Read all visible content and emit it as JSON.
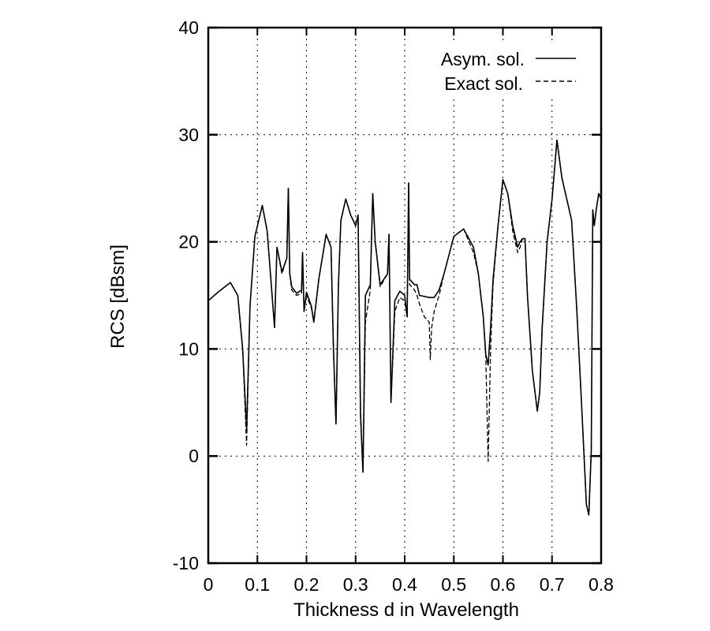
{
  "chart_data": {
    "type": "line",
    "title": "",
    "xlabel": "Thickness d in Wavelength",
    "ylabel": "RCS [dBsm]",
    "xlim": [
      0,
      0.8
    ],
    "ylim": [
      -10,
      40
    ],
    "x_ticks": [
      "0",
      "0.1",
      "0.2",
      "0.3",
      "0.4",
      "0.5",
      "0.6",
      "0.7",
      "0.8"
    ],
    "y_ticks": [
      "-10",
      "0",
      "10",
      "20",
      "30",
      "40"
    ],
    "grid": true,
    "legend_position": "upper right",
    "series": [
      {
        "name": "Asym. sol.",
        "style": "solid",
        "x": [
          0.0,
          0.02,
          0.045,
          0.06,
          0.07,
          0.078,
          0.085,
          0.095,
          0.11,
          0.12,
          0.13,
          0.135,
          0.14,
          0.15,
          0.16,
          0.163,
          0.166,
          0.17,
          0.18,
          0.19,
          0.192,
          0.195,
          0.2,
          0.21,
          0.215,
          0.225,
          0.24,
          0.25,
          0.255,
          0.26,
          0.265,
          0.27,
          0.28,
          0.29,
          0.3,
          0.305,
          0.31,
          0.315,
          0.32,
          0.33,
          0.335,
          0.34,
          0.35,
          0.365,
          0.368,
          0.372,
          0.38,
          0.39,
          0.4,
          0.405,
          0.408,
          0.41,
          0.42,
          0.425,
          0.43,
          0.45,
          0.46,
          0.47,
          0.48,
          0.5,
          0.52,
          0.54,
          0.55,
          0.56,
          0.565,
          0.57,
          0.575,
          0.58,
          0.59,
          0.6,
          0.61,
          0.62,
          0.63,
          0.635,
          0.64,
          0.645,
          0.65,
          0.66,
          0.67,
          0.675,
          0.68,
          0.69,
          0.7,
          0.71,
          0.72,
          0.73,
          0.74,
          0.75,
          0.76,
          0.77,
          0.775,
          0.78,
          0.783,
          0.786,
          0.79,
          0.795,
          0.8
        ],
        "y": [
          14.5,
          15.3,
          16.2,
          15.0,
          10.0,
          2.5,
          14.0,
          20.5,
          23.4,
          21.0,
          15.0,
          12.0,
          19.5,
          17.2,
          18.5,
          25.0,
          17.0,
          15.8,
          15.2,
          15.5,
          19.0,
          13.5,
          15.3,
          14.0,
          12.5,
          16.5,
          20.7,
          19.5,
          10.0,
          3.0,
          16.0,
          22.0,
          24.0,
          22.5,
          21.5,
          22.5,
          4.0,
          -1.5,
          15.0,
          16.0,
          24.5,
          20.0,
          16.0,
          17.0,
          20.7,
          5.0,
          14.5,
          15.4,
          15.0,
          13.0,
          25.5,
          16.5,
          16.0,
          16.0,
          15.0,
          14.8,
          14.8,
          15.5,
          17.0,
          20.5,
          21.2,
          19.5,
          17.0,
          13.0,
          9.5,
          8.5,
          12.0,
          16.5,
          21.5,
          25.8,
          24.5,
          21.5,
          19.5,
          20.0,
          20.3,
          20.3,
          15.0,
          8.0,
          4.2,
          6.0,
          12.0,
          20.0,
          24.0,
          29.5,
          26.0,
          24.0,
          22.0,
          14.0,
          5.0,
          -4.5,
          -5.5,
          0.5,
          23.0,
          21.5,
          23.0,
          24.5,
          24.0
        ]
      },
      {
        "name": "Exact sol.",
        "style": "dashed",
        "x": [
          0.0,
          0.02,
          0.045,
          0.06,
          0.07,
          0.078,
          0.085,
          0.095,
          0.11,
          0.12,
          0.13,
          0.135,
          0.14,
          0.15,
          0.16,
          0.163,
          0.166,
          0.17,
          0.18,
          0.19,
          0.192,
          0.195,
          0.2,
          0.21,
          0.215,
          0.225,
          0.24,
          0.25,
          0.255,
          0.26,
          0.265,
          0.27,
          0.28,
          0.29,
          0.3,
          0.305,
          0.31,
          0.315,
          0.32,
          0.33,
          0.335,
          0.34,
          0.35,
          0.365,
          0.368,
          0.372,
          0.38,
          0.39,
          0.4,
          0.405,
          0.408,
          0.41,
          0.42,
          0.425,
          0.43,
          0.44,
          0.45,
          0.452,
          0.455,
          0.46,
          0.47,
          0.48,
          0.5,
          0.52,
          0.54,
          0.55,
          0.56,
          0.565,
          0.57,
          0.575,
          0.58,
          0.59,
          0.6,
          0.61,
          0.62,
          0.63,
          0.635,
          0.64,
          0.645,
          0.65,
          0.66,
          0.67,
          0.675,
          0.68,
          0.69,
          0.7,
          0.71,
          0.72,
          0.73,
          0.74,
          0.75,
          0.76,
          0.77,
          0.775,
          0.78,
          0.783,
          0.786,
          0.79,
          0.795,
          0.8
        ],
        "y": [
          14.5,
          15.3,
          16.2,
          15.0,
          10.0,
          1.0,
          14.0,
          20.5,
          23.4,
          21.0,
          15.0,
          12.0,
          19.5,
          17.0,
          18.5,
          25.0,
          17.0,
          15.5,
          15.0,
          15.2,
          19.0,
          13.5,
          15.0,
          13.8,
          12.5,
          16.5,
          20.7,
          19.5,
          10.0,
          3.0,
          16.0,
          22.0,
          24.0,
          22.5,
          21.5,
          22.5,
          3.5,
          -1.5,
          12.5,
          15.5,
          24.5,
          20.0,
          15.8,
          17.0,
          20.7,
          5.0,
          13.5,
          14.8,
          14.5,
          13.0,
          25.5,
          16.0,
          15.5,
          15.0,
          14.2,
          13.0,
          12.5,
          9.0,
          12.0,
          13.5,
          15.0,
          17.0,
          20.5,
          21.2,
          19.0,
          17.0,
          13.0,
          9.5,
          -0.5,
          10.0,
          16.0,
          21.5,
          25.8,
          24.5,
          21.0,
          19.0,
          19.5,
          20.3,
          20.3,
          15.0,
          8.0,
          4.2,
          6.0,
          12.0,
          20.0,
          24.0,
          29.5,
          26.0,
          24.0,
          22.0,
          14.0,
          5.0,
          -4.5,
          -5.5,
          0.5,
          23.0,
          21.5,
          23.0,
          24.5,
          24.0
        ]
      }
    ]
  },
  "legend": {
    "items": [
      {
        "label": "Asym. sol.",
        "style": "solid"
      },
      {
        "label": "Exact sol.",
        "style": "dashed"
      }
    ]
  },
  "axes": {
    "xlabel": "Thickness d in Wavelength",
    "ylabel": "RCS [dBsm]"
  }
}
